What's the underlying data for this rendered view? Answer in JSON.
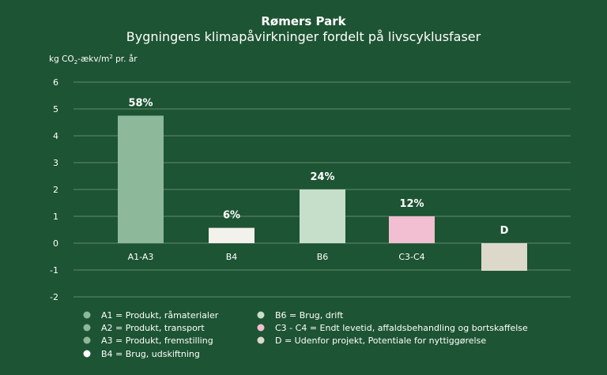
{
  "chart_data": {
    "type": "bar",
    "title": "Rømers Park",
    "subtitle": "Bygningens klimapåvirkninger fordelt på livscyklusfaser",
    "ylabel_prefix": "kg CO",
    "ylabel_sub": "2",
    "ylabel_mid": "-ækv/m",
    "ylabel_sup": "2",
    "ylabel_suffix": " pr. år",
    "ylim": [
      -2,
      6
    ],
    "yticks": [
      6,
      5,
      4,
      3,
      2,
      1,
      0,
      -1,
      -2
    ],
    "grid": true,
    "bars": [
      {
        "category": "A1-A3",
        "value": 4.75,
        "label": "58%",
        "color": "#8db89a"
      },
      {
        "category": "B4",
        "value": 0.57,
        "label": "6%",
        "color": "#f3f1ec"
      },
      {
        "category": "B6",
        "value": 2.0,
        "label": "24%",
        "color": "#c6dfcb"
      },
      {
        "category": "C3-C4",
        "value": 1.0,
        "label": "12%",
        "color": "#f1bfd1"
      },
      {
        "category": "",
        "value": -1.03,
        "label": "D",
        "color": "#dcd8ca"
      }
    ],
    "legend_placement": "bottom",
    "legend": [
      {
        "text": "A1 = Produkt, råmaterialer",
        "color": "#8db89a"
      },
      {
        "text": "A2 = Produkt, transport",
        "color": "#8db89a"
      },
      {
        "text": "A3 = Produkt, fremstilling",
        "color": "#8db89a"
      },
      {
        "text": "B4 = Brug, udskiftning",
        "color": "#ffffff"
      },
      {
        "text": "B6 = Brug, drift",
        "color": "#c6dfcb"
      },
      {
        "text": "C3 - C4 = Endt levetid, affaldsbehandling og bortskaffelse",
        "color": "#f1bfd1"
      },
      {
        "text": "D = Udenfor projekt, Potentiale for nyttiggørelse",
        "color": "#dcd8ca"
      }
    ],
    "colors": {
      "background": "#1d5433",
      "grid": "#5f8a6e",
      "text": "#ffffff"
    }
  }
}
